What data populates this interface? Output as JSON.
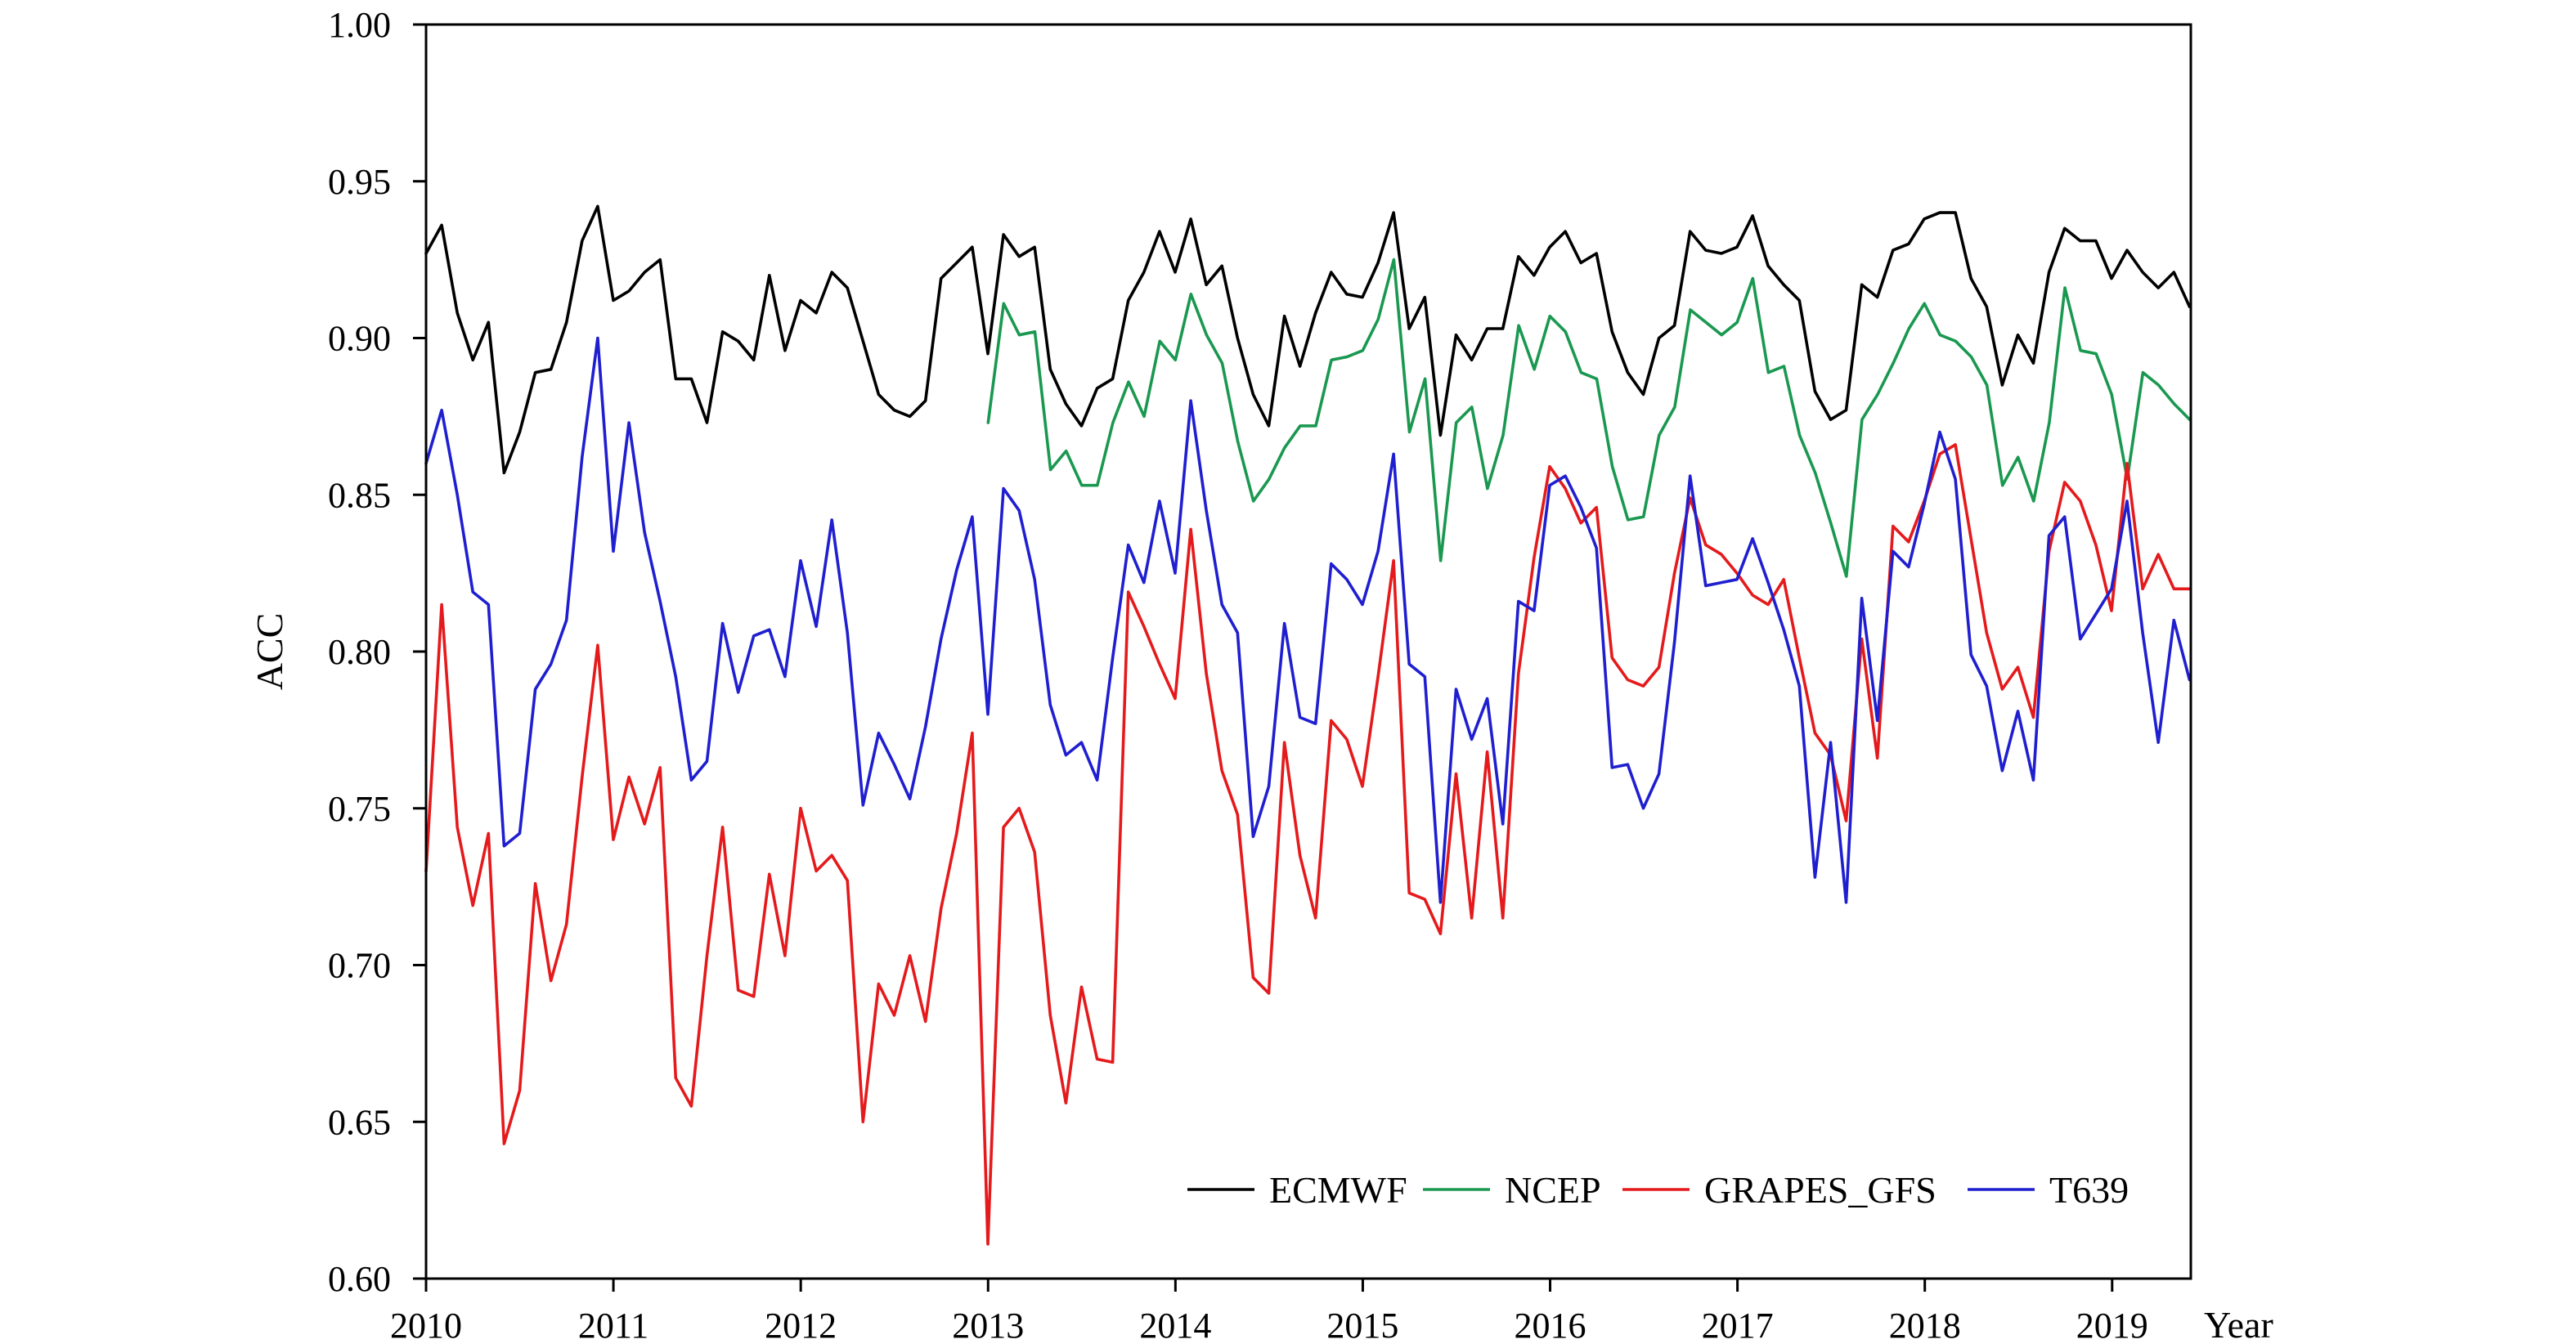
{
  "chart_data": {
    "type": "line",
    "xlabel": "Year",
    "ylabel": "ACC",
    "xlim": [
      2010,
      2019.42
    ],
    "ylim": [
      0.6,
      1.0
    ],
    "x_ticks": [
      2010,
      2011,
      2012,
      2013,
      2014,
      2015,
      2016,
      2017,
      2018,
      2019
    ],
    "x_tick_labels": [
      "2010",
      "2011",
      "2012",
      "2013",
      "2014",
      "2015",
      "2016",
      "2017",
      "2018",
      "2019"
    ],
    "y_ticks": [
      0.6,
      0.65,
      0.7,
      0.75,
      0.8,
      0.85,
      0.9,
      0.95,
      1.0
    ],
    "y_tick_labels": [
      "0.60",
      "0.65",
      "0.70",
      "0.75",
      "0.80",
      "0.85",
      "0.90",
      "0.95",
      "1.00"
    ],
    "grid": false,
    "legend_position": "bottom-right",
    "series": [
      {
        "name": "ECMWF",
        "color": "#000000",
        "x_start": 2010,
        "x_step": 0.0833,
        "values": [
          0.927,
          0.936,
          0.908,
          0.893,
          0.905,
          0.857,
          0.87,
          0.889,
          0.89,
          0.905,
          0.931,
          0.942,
          0.912,
          0.915,
          0.921,
          0.925,
          0.887,
          0.887,
          0.873,
          0.902,
          0.899,
          0.893,
          0.92,
          0.896,
          0.912,
          0.908,
          0.921,
          0.916,
          0.899,
          0.882,
          0.877,
          0.875,
          0.88,
          0.919,
          0.924,
          0.929,
          0.895,
          0.933,
          0.926,
          0.929,
          0.89,
          0.879,
          0.872,
          0.884,
          0.887,
          0.912,
          0.921,
          0.934,
          0.921,
          0.938,
          0.917,
          0.923,
          0.9,
          0.882,
          0.872,
          0.907,
          0.891,
          0.908,
          0.921,
          0.914,
          0.913,
          0.924,
          0.94,
          0.903,
          0.913,
          0.869,
          0.901,
          0.893,
          0.903,
          0.903,
          0.926,
          0.92,
          0.929,
          0.934,
          0.924,
          0.927,
          0.902,
          0.889,
          0.882,
          0.9,
          0.904,
          0.934,
          0.928,
          0.927,
          0.929,
          0.939,
          0.923,
          0.917,
          0.912,
          0.883,
          0.874,
          0.877,
          0.917,
          0.913,
          0.928,
          0.93,
          0.938,
          0.94,
          0.94,
          0.919,
          0.91,
          0.885,
          0.901,
          0.892,
          0.921,
          0.935,
          0.931,
          0.931,
          0.919,
          0.928,
          0.921,
          0.916,
          0.921,
          0.91
        ]
      },
      {
        "name": "NCEP",
        "color": "#1a9850",
        "x_start": 2013,
        "x_step": 0.0833,
        "values": [
          0.873,
          0.911,
          0.901,
          0.902,
          0.858,
          0.864,
          0.853,
          0.853,
          0.873,
          0.886,
          0.875,
          0.899,
          0.893,
          0.914,
          0.901,
          0.892,
          0.867,
          0.848,
          0.855,
          0.865,
          0.872,
          0.872,
          0.893,
          0.894,
          0.896,
          0.906,
          0.925,
          0.87,
          0.887,
          0.829,
          0.873,
          0.878,
          0.852,
          0.869,
          0.904,
          0.89,
          0.907,
          0.902,
          0.889,
          0.887,
          0.859,
          0.842,
          0.843,
          0.869,
          0.878,
          0.909,
          0.905,
          0.901,
          0.905,
          0.919,
          0.889,
          0.891,
          0.869,
          0.857,
          0.841,
          0.824,
          0.874,
          0.882,
          0.892,
          0.903,
          0.911,
          0.901,
          0.899,
          0.894,
          0.885,
          0.853,
          0.862,
          0.848,
          0.873,
          0.916,
          0.896,
          0.895,
          0.882,
          0.855,
          0.889,
          0.885,
          0.879,
          0.874
        ]
      },
      {
        "name": "GRAPES_GFS",
        "color": "#e41a1c",
        "x_start": 2010,
        "x_step": 0.0833,
        "values": [
          0.73,
          0.815,
          0.744,
          0.719,
          0.742,
          0.643,
          0.66,
          0.726,
          0.695,
          0.713,
          0.76,
          0.802,
          0.74,
          0.76,
          0.745,
          0.763,
          0.664,
          0.655,
          0.703,
          0.744,
          0.692,
          0.69,
          0.729,
          0.703,
          0.75,
          0.73,
          0.735,
          0.727,
          0.65,
          0.694,
          0.684,
          0.703,
          0.682,
          0.718,
          0.742,
          0.774,
          0.611,
          0.744,
          0.75,
          0.736,
          0.684,
          0.656,
          0.693,
          0.67,
          0.669,
          0.819,
          0.808,
          0.796,
          0.785,
          0.839,
          0.793,
          0.762,
          0.748,
          0.696,
          0.691,
          0.771,
          0.735,
          0.715,
          0.778,
          0.772,
          0.757,
          0.792,
          0.829,
          0.723,
          0.721,
          0.71,
          0.761,
          0.715,
          0.768,
          0.715,
          0.793,
          0.83,
          0.859,
          0.852,
          0.841,
          0.846,
          0.798,
          0.791,
          0.789,
          0.795,
          0.825,
          0.849,
          0.834,
          0.831,
          0.825,
          0.818,
          0.815,
          0.823,
          0.798,
          0.774,
          0.767,
          0.746,
          0.804,
          0.766,
          0.84,
          0.835,
          0.848,
          0.863,
          0.866,
          0.836,
          0.806,
          0.788,
          0.795,
          0.779,
          0.832,
          0.854,
          0.848,
          0.834,
          0.813,
          0.86,
          0.82,
          0.831,
          0.82,
          0.82
        ]
      },
      {
        "name": "T639",
        "color": "#1f1fd0",
        "x_start": 2010,
        "x_step": 0.0833,
        "values": [
          0.86,
          0.877,
          0.85,
          0.819,
          0.815,
          0.738,
          0.742,
          0.788,
          0.796,
          0.81,
          0.862,
          0.9,
          0.832,
          0.873,
          0.838,
          0.816,
          0.792,
          0.759,
          0.765,
          0.809,
          0.787,
          0.805,
          0.807,
          0.792,
          0.829,
          0.808,
          0.842,
          0.806,
          0.751,
          0.774,
          0.764,
          0.753,
          0.776,
          0.804,
          0.826,
          0.843,
          0.78,
          0.852,
          0.845,
          0.823,
          0.783,
          0.767,
          0.771,
          0.759,
          0.798,
          0.834,
          0.822,
          0.848,
          0.825,
          0.88,
          0.845,
          0.815,
          0.806,
          0.741,
          0.757,
          0.809,
          0.779,
          0.777,
          0.828,
          0.823,
          0.815,
          0.832,
          0.863,
          0.796,
          0.792,
          0.72,
          0.788,
          0.772,
          0.785,
          0.745,
          0.816,
          0.813,
          0.853,
          0.856,
          0.846,
          0.833,
          0.763,
          0.764,
          0.75,
          0.761,
          0.803,
          0.856,
          0.821,
          0.822,
          0.823,
          0.836,
          0.822,
          0.807,
          0.789,
          0.728,
          0.771,
          0.72,
          0.817,
          0.778,
          0.832,
          0.827,
          0.847,
          0.87,
          0.855,
          0.799,
          0.789,
          0.762,
          0.781,
          0.759,
          0.837,
          0.843,
          0.804,
          0.812,
          0.82,
          0.848,
          0.806,
          0.771,
          0.81,
          0.791
        ]
      }
    ]
  }
}
